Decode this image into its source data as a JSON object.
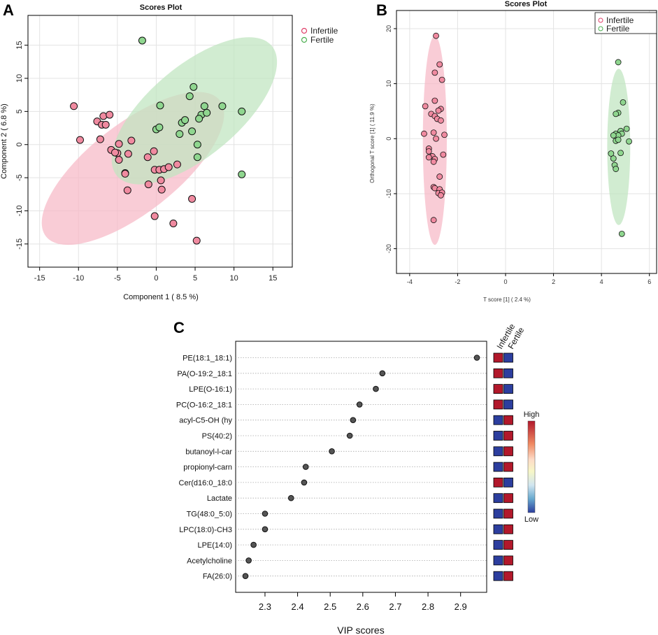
{
  "chart_data": [
    {
      "panel": "A",
      "type": "scatter",
      "title": "Scores Plot",
      "xlabel": "Component 1 ( 8.5 %)",
      "ylabel": "Component 2 ( 6.8 %)",
      "xlim": [
        -16.5,
        17.5
      ],
      "ylim": [
        -18.5,
        19.5
      ],
      "xticks": [
        -15,
        -10,
        -5,
        0,
        5,
        10,
        15
      ],
      "yticks": [
        -15,
        -10,
        -5,
        0,
        5,
        10,
        15
      ],
      "grid": true,
      "legend_position": "top-right",
      "colors": {
        "Infertile": "#f08aa0",
        "Fertile": "#8fd68f",
        "Infertile_ellipse": "#f6b8c6",
        "Fertile_ellipse": "#bfe5bf",
        "Infertile_legend": "#e0406a",
        "Fertile_legend": "#4caf50"
      },
      "series": [
        {
          "name": "Infertile",
          "points": [
            [
              -10.6,
              5.8
            ],
            [
              -9.8,
              0.7
            ],
            [
              -7.6,
              3.5
            ],
            [
              -7.0,
              3.0
            ],
            [
              -6.8,
              4.3
            ],
            [
              -6.5,
              3.0
            ],
            [
              -6.0,
              4.5
            ],
            [
              -7.2,
              0.8
            ],
            [
              -5.8,
              -0.8
            ],
            [
              -5.0,
              -1.3
            ],
            [
              -5.3,
              -1.2
            ],
            [
              -4.8,
              -2.3
            ],
            [
              -4.8,
              0.1
            ],
            [
              -4.0,
              -4.3
            ],
            [
              -3.6,
              -1.4
            ],
            [
              -3.7,
              -6.9
            ],
            [
              -3.2,
              0.6
            ],
            [
              -4.0,
              -4.4
            ],
            [
              -1.1,
              -1.9
            ],
            [
              -1.0,
              -6.0
            ],
            [
              -0.2,
              -3.8
            ],
            [
              0.4,
              -3.8
            ],
            [
              0.6,
              -5.4
            ],
            [
              0.7,
              -6.8
            ],
            [
              -0.3,
              -1.0
            ],
            [
              1.0,
              -3.7
            ],
            [
              1.6,
              -3.4
            ],
            [
              2.7,
              -3.0
            ],
            [
              2.2,
              -11.9
            ],
            [
              -0.2,
              -10.8
            ],
            [
              4.6,
              -8.2
            ],
            [
              5.2,
              -14.5
            ]
          ],
          "ellipse": {
            "cx": -3.0,
            "cy": -3.6,
            "rx": 14.2,
            "ry": 6.7,
            "angle_deg": -38
          }
        },
        {
          "name": "Fertile",
          "points": [
            [
              -1.8,
              15.7
            ],
            [
              0.5,
              5.9
            ],
            [
              4.8,
              8.7
            ],
            [
              4.3,
              7.3
            ],
            [
              5.8,
              4.5
            ],
            [
              6.2,
              5.8
            ],
            [
              6.5,
              4.8
            ],
            [
              5.5,
              3.9
            ],
            [
              3.3,
              3.3
            ],
            [
              3.7,
              3.7
            ],
            [
              4.6,
              2.0
            ],
            [
              0.0,
              2.3
            ],
            [
              0.4,
              2.6
            ],
            [
              3.0,
              1.6
            ],
            [
              5.3,
              0.0
            ],
            [
              8.5,
              5.8
            ],
            [
              11.0,
              5.0
            ],
            [
              5.3,
              -1.9
            ],
            [
              11.0,
              -4.5
            ]
          ],
          "ellipse": {
            "cx": 4.9,
            "cy": 5.1,
            "rx": 13.0,
            "ry": 6.8,
            "angle_deg": -40
          }
        }
      ]
    },
    {
      "panel": "B",
      "type": "scatter",
      "title": "Scores Plot",
      "xlabel": "T score [1] ( 2.4 %)",
      "ylabel": "Orthogonal T score [1] ( 11.9 %)",
      "xlim": [
        -4.55,
        6.3
      ],
      "ylim": [
        -24.5,
        23.3
      ],
      "xticks": [
        -4,
        -2,
        0,
        2,
        4,
        6
      ],
      "yticks": [
        -20,
        -10,
        0,
        10,
        20
      ],
      "grid": true,
      "legend_position": "top-right",
      "colors": {
        "Infertile": "#f08aa0",
        "Fertile": "#8fd68f",
        "Infertile_ellipse": "#f6b8c6",
        "Fertile_ellipse": "#bfe5bf",
        "Infertile_legend": "#e0406a",
        "Fertile_legend": "#4caf50"
      },
      "series": [
        {
          "name": "Infertile",
          "points": [
            [
              -2.9,
              18.7
            ],
            [
              -2.75,
              13.5
            ],
            [
              -2.95,
              12.0
            ],
            [
              -2.65,
              10.7
            ],
            [
              -2.95,
              6.9
            ],
            [
              -3.35,
              5.9
            ],
            [
              -3.1,
              4.5
            ],
            [
              -2.7,
              5.4
            ],
            [
              -2.8,
              5.1
            ],
            [
              -2.95,
              4.1
            ],
            [
              -2.85,
              3.6
            ],
            [
              -2.7,
              3.3
            ],
            [
              -3.4,
              0.9
            ],
            [
              -3.0,
              1.1
            ],
            [
              -2.55,
              0.7
            ],
            [
              -2.9,
              0.0
            ],
            [
              -3.2,
              -1.8
            ],
            [
              -3.2,
              -2.3
            ],
            [
              -3.05,
              -3.2
            ],
            [
              -3.2,
              -3.4
            ],
            [
              -2.6,
              -2.9
            ],
            [
              -2.95,
              -3.7
            ],
            [
              -3.0,
              -4.2
            ],
            [
              -2.75,
              -6.9
            ],
            [
              -3.0,
              -8.8
            ],
            [
              -2.95,
              -9.0
            ],
            [
              -2.75,
              -9.2
            ],
            [
              -2.8,
              -9.9
            ],
            [
              -2.65,
              -9.8
            ],
            [
              -2.7,
              -10.3
            ],
            [
              -3.0,
              -14.8
            ]
          ],
          "ellipse": {
            "cx": -2.95,
            "cy": -0.3,
            "rx": 0.5,
            "ry": 19.0,
            "angle_deg": 0
          }
        },
        {
          "name": "Fertile",
          "points": [
            [
              4.7,
              13.9
            ],
            [
              4.9,
              6.6
            ],
            [
              4.7,
              4.7
            ],
            [
              4.6,
              4.5
            ],
            [
              5.05,
              1.8
            ],
            [
              4.8,
              1.4
            ],
            [
              4.85,
              0.9
            ],
            [
              4.6,
              0.9
            ],
            [
              4.7,
              0.6
            ],
            [
              4.5,
              0.6
            ],
            [
              4.6,
              -0.4
            ],
            [
              5.15,
              -0.5
            ],
            [
              4.7,
              -0.2
            ],
            [
              4.4,
              -2.7
            ],
            [
              4.8,
              -2.6
            ],
            [
              4.5,
              -3.6
            ],
            [
              4.55,
              -4.8
            ],
            [
              4.6,
              -5.5
            ],
            [
              4.85,
              -17.3
            ]
          ],
          "ellipse": {
            "cx": 4.72,
            "cy": -1.5,
            "rx": 0.48,
            "ry": 14.2,
            "angle_deg": 0
          }
        }
      ]
    },
    {
      "panel": "C",
      "type": "scatter",
      "subtype": "vip_dotplot",
      "xlabel": "VIP scores",
      "ylabel": "",
      "xlim": [
        2.21,
        2.98
      ],
      "xticks": [
        2.3,
        2.4,
        2.5,
        2.6,
        2.7,
        2.8,
        2.9
      ],
      "grid": false,
      "categories": [
        "PE(18:1_18:1)",
        "PA(O-19:2_18:1",
        "LPE(O-16:1)",
        "PC(O-16:2_18:1",
        "acyl-C5-OH (hy",
        "PS(40:2)",
        "butanoyl-l-car",
        "propionyl-carn",
        "Cer(d16:0_18:0",
        "Lactate",
        "TG(48:0_5:0)",
        "LPC(18:0)-CH3",
        "LPE(14:0)",
        "Acetylcholine",
        "FA(26:0)"
      ],
      "values": [
        2.95,
        2.66,
        2.64,
        2.59,
        2.57,
        2.56,
        2.505,
        2.425,
        2.42,
        2.38,
        2.3,
        2.3,
        2.265,
        2.25,
        2.24
      ],
      "heatmap_columns": [
        "Infertile",
        "Fertile"
      ],
      "heatmap_levels": [
        [
          "high",
          "low"
        ],
        [
          "high",
          "low"
        ],
        [
          "high",
          "low"
        ],
        [
          "high",
          "low"
        ],
        [
          "low",
          "high"
        ],
        [
          "low",
          "high"
        ],
        [
          "low",
          "high"
        ],
        [
          "low",
          "high"
        ],
        [
          "high",
          "low"
        ],
        [
          "low",
          "high"
        ],
        [
          "low",
          "high"
        ],
        [
          "low",
          "high"
        ],
        [
          "low",
          "high"
        ],
        [
          "low",
          "high"
        ],
        [
          "low",
          "high"
        ]
      ],
      "colorbar": {
        "high_label": "High",
        "low_label": "Low",
        "high_color": "#b2182b",
        "low_color": "#2c3e9e"
      }
    }
  ],
  "panel_letters": {
    "a": "A",
    "b": "B",
    "c": "C"
  },
  "legend": {
    "item1": "Infertile",
    "item2": "Fertile"
  }
}
